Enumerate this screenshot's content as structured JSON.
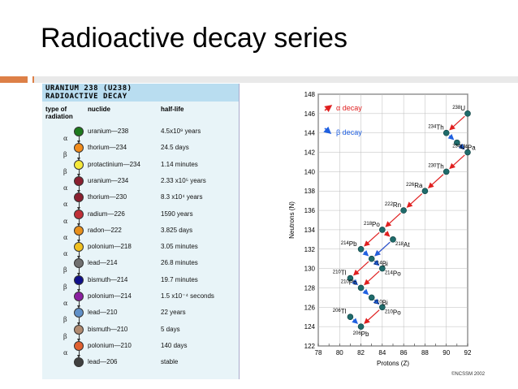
{
  "slide": {
    "title": "Radioactive decay series"
  },
  "table": {
    "title_line1": "URANIUM 238 (U238)",
    "title_line2": "RADIOACTIVE DECAY",
    "col_type": "type of radiation",
    "col_nuclide": "nuclide",
    "col_halflife": "half-life",
    "rows": [
      {
        "nuclide": "uranium—238",
        "halflife": "4.5x10⁹ years",
        "color": "#1e7a1e"
      },
      {
        "nuclide": "thorium—234",
        "halflife": "24.5 days",
        "color": "#f28c1c"
      },
      {
        "nuclide": "protactinium—234",
        "halflife": "1.14 minutes",
        "color": "#f5e83a"
      },
      {
        "nuclide": "uranium—234",
        "halflife": "2.33 x10⁵ years",
        "color": "#8a2030"
      },
      {
        "nuclide": "thorium—230",
        "halflife": "8.3 x10⁴ years",
        "color": "#8a2030"
      },
      {
        "nuclide": "radium—226",
        "halflife": "1590 years",
        "color": "#c03038"
      },
      {
        "nuclide": "radon—222",
        "halflife": "3.825 days",
        "color": "#e8901c"
      },
      {
        "nuclide": "polonium—218",
        "halflife": "3.05 minutes",
        "color": "#f0c020"
      },
      {
        "nuclide": "lead—214",
        "halflife": "26.8 minutes",
        "color": "#707070"
      },
      {
        "nuclide": "bismuth—214",
        "halflife": "19.7 minutes",
        "color": "#10108a"
      },
      {
        "nuclide": "polonium—214",
        "halflife": "1.5 x10⁻⁴ seconds",
        "color": "#8a20a0"
      },
      {
        "nuclide": "lead—210",
        "halflife": "22 years",
        "color": "#6090c8"
      },
      {
        "nuclide": "bismuth—210",
        "halflife": "5 days",
        "color": "#b08a70"
      },
      {
        "nuclide": "polonium—210",
        "halflife": "140 days",
        "color": "#e06030"
      },
      {
        "nuclide": "lead—206",
        "halflife": "stable",
        "color": "#404040"
      }
    ],
    "decays": [
      "α",
      "β",
      "β",
      "α",
      "α",
      "α",
      "α",
      "α",
      "β",
      "β",
      "α",
      "β",
      "β",
      "α"
    ]
  },
  "chart_data": {
    "type": "scatter",
    "xlabel": "Protons (Z)",
    "ylabel": "Neutrons (N)",
    "xlim": [
      78,
      92
    ],
    "ylim": [
      122,
      148
    ],
    "xticks": [
      78,
      80,
      82,
      84,
      86,
      88,
      90,
      92
    ],
    "yticks": [
      122,
      124,
      126,
      128,
      130,
      132,
      134,
      136,
      138,
      140,
      142,
      144,
      146,
      148
    ],
    "legend": [
      {
        "label": "α decay",
        "color": "#e02020"
      },
      {
        "label": "β decay",
        "color": "#2060e0"
      }
    ],
    "points": [
      {
        "label": "238U",
        "z": 92,
        "n": 146
      },
      {
        "label": "234Th",
        "z": 90,
        "n": 144
      },
      {
        "label": "234Pa",
        "z": 91,
        "n": 143
      },
      {
        "label": "234U",
        "z": 92,
        "n": 142
      },
      {
        "label": "230Th",
        "z": 90,
        "n": 140
      },
      {
        "label": "226Ra",
        "z": 88,
        "n": 138
      },
      {
        "label": "222Rn",
        "z": 86,
        "n": 136
      },
      {
        "label": "218Po",
        "z": 84,
        "n": 134
      },
      {
        "label": "218At",
        "z": 85,
        "n": 133
      },
      {
        "label": "214Pb",
        "z": 82,
        "n": 132
      },
      {
        "label": "214Bi",
        "z": 83,
        "n": 131
      },
      {
        "label": "214Po",
        "z": 84,
        "n": 130
      },
      {
        "label": "210Tl",
        "z": 81,
        "n": 129
      },
      {
        "label": "210Pb",
        "z": 82,
        "n": 128
      },
      {
        "label": "210Bi",
        "z": 83,
        "n": 127
      },
      {
        "label": "210Po",
        "z": 84,
        "n": 126
      },
      {
        "label": "206Tl",
        "z": 81,
        "n": 125
      },
      {
        "label": "206Pb",
        "z": 82,
        "n": 124
      }
    ],
    "alpha": [
      [
        0,
        1
      ],
      [
        3,
        4
      ],
      [
        4,
        5
      ],
      [
        5,
        6
      ],
      [
        6,
        7
      ],
      [
        7,
        9
      ],
      [
        8,
        10
      ],
      [
        11,
        13
      ],
      [
        15,
        17
      ],
      [
        10,
        12
      ],
      [
        7,
        8
      ]
    ],
    "beta": [
      [
        1,
        2
      ],
      [
        2,
        3
      ],
      [
        9,
        10
      ],
      [
        10,
        11
      ],
      [
        13,
        14
      ],
      [
        14,
        15
      ],
      [
        8,
        10
      ],
      [
        12,
        13
      ],
      [
        16,
        17
      ]
    ]
  },
  "footer": {
    "credit": "©NCSSM 2002"
  }
}
